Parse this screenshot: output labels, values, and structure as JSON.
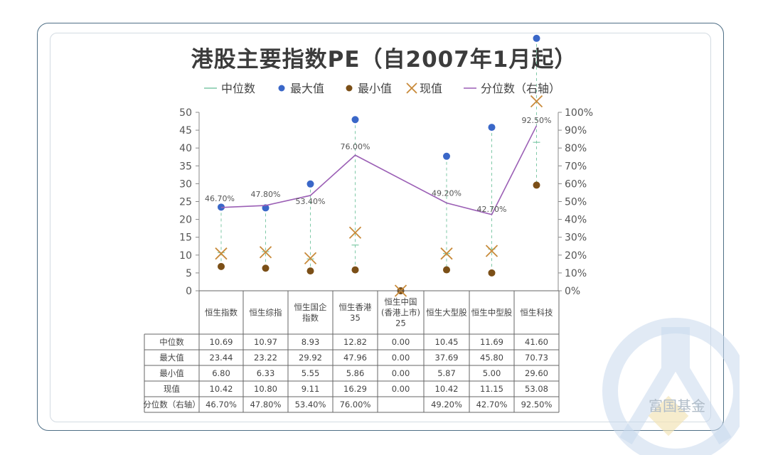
{
  "title": "港股主要指数PE（自2007年1月起）",
  "watermark_text": "富国基金",
  "colors": {
    "median": "#7fc9a7",
    "max": "#3a67c8",
    "min": "#7b4f17",
    "current": "#c88a3a",
    "percentile": "#9b5fb5",
    "axis": "#888888",
    "text": "#555555"
  },
  "chart_data": {
    "type": "line",
    "title": "港股主要指数PE（自2007年1月起）",
    "categories": [
      "恒生指数",
      "恒生综指",
      "恒生国企指数",
      "恒生香港35",
      "恒生中国(香港上市)25",
      "恒生大型股",
      "恒生中型股",
      "恒生科技"
    ],
    "category_lines": [
      [
        "恒生指数"
      ],
      [
        "恒生综指"
      ],
      [
        "恒生国企",
        "指数"
      ],
      [
        "恒生香港",
        "35"
      ],
      [
        "恒生中国",
        "(香港上市)",
        "25"
      ],
      [
        "恒生大型股"
      ],
      [
        "恒生中型股"
      ],
      [
        "恒生科技"
      ]
    ],
    "series": [
      {
        "name": "中位数",
        "values": [
          10.69,
          10.97,
          8.93,
          12.82,
          0.0,
          10.45,
          11.69,
          41.6
        ]
      },
      {
        "name": "最大值",
        "values": [
          23.44,
          23.22,
          29.92,
          47.96,
          0.0,
          37.69,
          45.8,
          70.73
        ]
      },
      {
        "name": "最小值",
        "values": [
          6.8,
          6.33,
          5.55,
          5.86,
          0.0,
          5.87,
          5.0,
          29.6
        ]
      },
      {
        "name": "现值",
        "values": [
          10.42,
          10.8,
          9.11,
          16.29,
          0.0,
          10.42,
          11.15,
          53.08
        ]
      },
      {
        "name": "分位数（右轴）",
        "axis": "right",
        "values": [
          46.7,
          47.8,
          53.4,
          76.0,
          null,
          49.2,
          42.7,
          92.5
        ]
      }
    ],
    "left_axis": {
      "min": 0,
      "max": 50,
      "ticks": [
        "0",
        "5",
        "10",
        "15",
        "20",
        "25",
        "30",
        "35",
        "40",
        "45",
        "50"
      ]
    },
    "right_axis": {
      "min": 0,
      "max": 100,
      "unit": "%",
      "ticks": [
        "0%",
        "10%",
        "20%",
        "30%",
        "40%",
        "50%",
        "60%",
        "70%",
        "80%",
        "90%",
        "100%"
      ]
    },
    "percentile_labels": [
      "46.70%",
      "47.80%",
      "53.40%",
      "76.00%",
      "",
      "49.20%",
      "42.70%",
      "92.50%"
    ],
    "legend_position": "top",
    "table": {
      "rows": [
        {
          "label": "中位数",
          "cells": [
            "10.69",
            "10.97",
            "8.93",
            "12.82",
            "0.00",
            "10.45",
            "11.69",
            "41.60"
          ]
        },
        {
          "label": "最大值",
          "cells": [
            "23.44",
            "23.22",
            "29.92",
            "47.96",
            "0.00",
            "37.69",
            "45.80",
            "70.73"
          ]
        },
        {
          "label": "最小值",
          "cells": [
            "6.80",
            "6.33",
            "5.55",
            "5.86",
            "0.00",
            "5.87",
            "5.00",
            "29.60"
          ]
        },
        {
          "label": "现值",
          "cells": [
            "10.42",
            "10.80",
            "9.11",
            "16.29",
            "0.00",
            "10.42",
            "11.15",
            "53.08"
          ]
        },
        {
          "label": "分位数（右轴）",
          "cells": [
            "46.70%",
            "47.80%",
            "53.40%",
            "76.00%",
            "",
            "49.20%",
            "42.70%",
            "92.50%"
          ]
        }
      ]
    }
  }
}
